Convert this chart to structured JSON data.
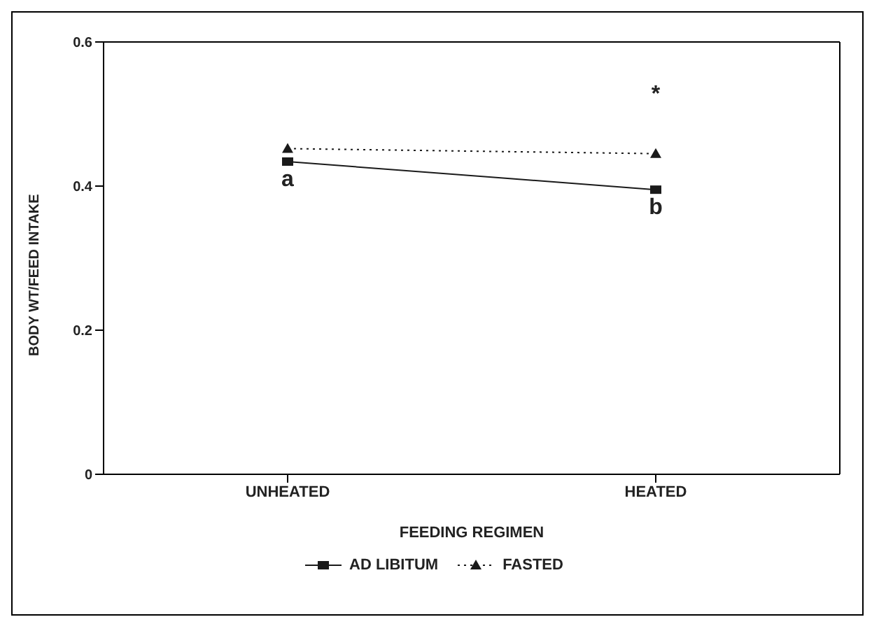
{
  "chart_data": {
    "type": "line",
    "xlabel": "FEEDING REGIMEN",
    "ylabel": "BODY WT/FEED INTAKE",
    "categories": [
      "UNHEATED",
      "HEATED"
    ],
    "series": [
      {
        "name": "AD LIBITUM",
        "color": "#1a1a1a",
        "values": [
          0.434,
          0.395
        ],
        "marker": "square",
        "line_style": "solid"
      },
      {
        "name": "FASTED",
        "color": "#1a1a1a",
        "values": [
          0.452,
          0.445
        ],
        "marker": "triangle",
        "line_style": "dotted"
      }
    ],
    "ylim": [
      0,
      0.6
    ],
    "yticks": [
      0,
      0.2,
      0.4,
      0.6
    ],
    "grid": false,
    "legend": "bottom",
    "annotations": [
      {
        "text": "a",
        "x": "UNHEATED",
        "y": 0.434
      },
      {
        "text": "b",
        "x": "HEATED",
        "y": 0.395
      },
      {
        "text": "*",
        "x": "HEATED",
        "y": 0.445
      }
    ]
  }
}
